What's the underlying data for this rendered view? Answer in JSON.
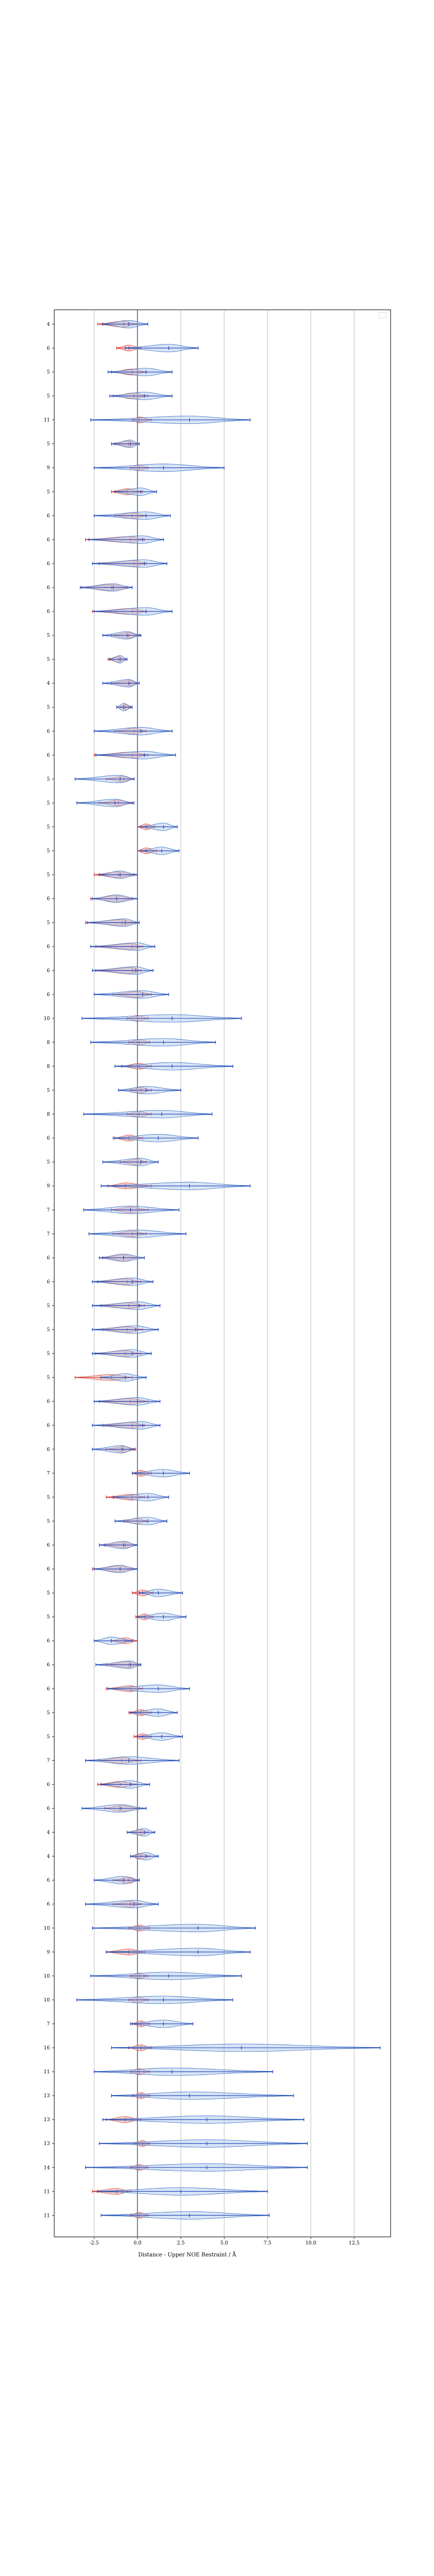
{
  "chart_data": {
    "type": "violin",
    "xlabel": "Distance - Upper NOE Restraint / Å",
    "xlim": [
      -4.8,
      14.6
    ],
    "x_ticks": [
      -2.5,
      0.0,
      2.5,
      5.0,
      7.5,
      10.0,
      12.5
    ],
    "x_tick_labels": [
      "-2.5",
      "0.0",
      "2.5",
      "5.0",
      "7.5",
      "10.0",
      "12.5"
    ],
    "grid": "vertical",
    "legend": "top-right",
    "colors": {
      "violin_blue_fill": "#a9c6ea",
      "violin_blue_edge": "#3a72c4",
      "violin_red_fill": "#ec9e96",
      "violin_red_edge": "#d9463a",
      "line_blue": "#1f3fb5",
      "line_red": "#d92b2b",
      "zero_line": "#1f5fa8",
      "grid": "#b0b0b0"
    },
    "series": [
      {
        "name": "blue",
        "note": ""
      },
      {
        "name": "red",
        "note": ""
      }
    ],
    "rows": [
      {
        "label": "4",
        "blue": [
          -2.0,
          -0.5,
          0.6
        ],
        "red": [
          -2.3,
          -0.8,
          0.0
        ]
      },
      {
        "label": "6",
        "blue": [
          -0.7,
          1.8,
          3.5
        ],
        "red": [
          -1.2,
          -0.5,
          0.2
        ]
      },
      {
        "label": "5",
        "blue": [
          -1.7,
          0.5,
          2.0
        ],
        "red": [
          -1.5,
          -0.3,
          0.5
        ]
      },
      {
        "label": "5",
        "blue": [
          -1.6,
          0.4,
          2.0
        ],
        "red": [
          -1.4,
          -0.2,
          0.6
        ]
      },
      {
        "label": "11",
        "blue": [
          -2.7,
          3.0,
          6.5
        ],
        "red": [
          -0.3,
          0.1,
          0.8
        ]
      },
      {
        "label": "5",
        "blue": [
          -1.5,
          -0.4,
          0.1
        ],
        "red": [
          -1.3,
          -0.5,
          0.0
        ]
      },
      {
        "label": "9",
        "blue": [
          -2.5,
          1.5,
          5.0
        ],
        "red": [
          -0.4,
          0.1,
          0.6
        ]
      },
      {
        "label": "5",
        "blue": [
          -1.3,
          0.2,
          1.1
        ],
        "red": [
          -1.5,
          -0.6,
          0.3
        ]
      },
      {
        "label": "6",
        "blue": [
          -2.5,
          0.5,
          1.9
        ],
        "red": [
          -1.3,
          -0.3,
          0.5
        ]
      },
      {
        "label": "6",
        "blue": [
          -2.8,
          0.3,
          1.5
        ],
        "red": [
          -3.0,
          -0.4,
          0.4
        ]
      },
      {
        "label": "6",
        "blue": [
          -2.6,
          0.4,
          1.7
        ],
        "red": [
          -2.2,
          -0.2,
          0.5
        ]
      },
      {
        "label": "6",
        "blue": [
          -3.3,
          -1.4,
          -0.3
        ],
        "red": [
          -3.2,
          -1.5,
          -0.6
        ]
      },
      {
        "label": "6",
        "blue": [
          -2.5,
          0.5,
          2.0
        ],
        "red": [
          -2.6,
          -0.3,
          0.5
        ]
      },
      {
        "label": "5",
        "blue": [
          -2.0,
          -0.6,
          0.2
        ],
        "red": [
          -1.5,
          -0.5,
          0.1
        ]
      },
      {
        "label": "5",
        "blue": [
          -1.6,
          -1.0,
          -0.6
        ],
        "red": [
          -1.7,
          -1.1,
          -0.7
        ]
      },
      {
        "label": "4",
        "blue": [
          -2.0,
          -0.5,
          0.1
        ],
        "red": [
          -1.5,
          -0.4,
          0.0
        ]
      },
      {
        "label": "5",
        "blue": [
          -1.2,
          -0.8,
          -0.3
        ],
        "red": [
          -1.0,
          -0.7,
          -0.4
        ]
      },
      {
        "label": "6",
        "blue": [
          -2.5,
          0.2,
          2.0
        ],
        "red": [
          -1.3,
          -0.2,
          0.5
        ]
      },
      {
        "label": "6",
        "blue": [
          -2.4,
          0.4,
          2.2
        ],
        "red": [
          -2.5,
          -0.3,
          0.6
        ]
      },
      {
        "label": "5",
        "blue": [
          -3.6,
          -1.0,
          -0.2
        ],
        "red": [
          -1.8,
          -0.8,
          -0.2
        ]
      },
      {
        "label": "5",
        "blue": [
          -3.5,
          -1.3,
          -0.2
        ],
        "red": [
          -2.2,
          -1.1,
          -0.3
        ]
      },
      {
        "label": "5",
        "blue": [
          0.2,
          1.5,
          2.3
        ],
        "red": [
          0.0,
          0.5,
          1.0
        ]
      },
      {
        "label": "5",
        "blue": [
          0.2,
          1.4,
          2.4
        ],
        "red": [
          0.0,
          0.5,
          1.1
        ]
      },
      {
        "label": "5",
        "blue": [
          -2.2,
          -1.0,
          0.0
        ],
        "red": [
          -2.5,
          -1.1,
          -0.2
        ]
      },
      {
        "label": "6",
        "blue": [
          -2.6,
          -1.2,
          0.0
        ],
        "red": [
          -2.7,
          -1.2,
          -0.3
        ]
      },
      {
        "label": "5",
        "blue": [
          -2.9,
          -0.7,
          0.1
        ],
        "red": [
          -3.0,
          -0.9,
          -0.1
        ]
      },
      {
        "label": "6",
        "blue": [
          -2.7,
          0.0,
          1.0
        ],
        "red": [
          -2.4,
          -0.3,
          0.3
        ]
      },
      {
        "label": "6",
        "blue": [
          -2.6,
          -0.1,
          0.9
        ],
        "red": [
          -2.4,
          -0.3,
          0.2
        ]
      },
      {
        "label": "6",
        "blue": [
          -2.5,
          0.3,
          1.8
        ],
        "red": [
          -1.4,
          0.0,
          0.8
        ]
      },
      {
        "label": "10",
        "blue": [
          -3.2,
          2.0,
          6.0
        ],
        "red": [
          -0.6,
          0.0,
          0.6
        ]
      },
      {
        "label": "8",
        "blue": [
          -2.7,
          1.5,
          4.5
        ],
        "red": [
          -0.5,
          0.1,
          0.7
        ]
      },
      {
        "label": "8",
        "blue": [
          -1.3,
          2.0,
          5.5
        ],
        "red": [
          -0.9,
          0.1,
          0.8
        ]
      },
      {
        "label": "5",
        "blue": [
          -1.1,
          0.5,
          2.5
        ],
        "red": [
          -0.4,
          0.2,
          0.8
        ]
      },
      {
        "label": "8",
        "blue": [
          -3.1,
          1.4,
          4.3
        ],
        "red": [
          -0.6,
          0.1,
          0.8
        ]
      },
      {
        "label": "6",
        "blue": [
          -1.4,
          1.2,
          3.5
        ],
        "red": [
          -1.3,
          -0.5,
          0.3
        ]
      },
      {
        "label": "5",
        "blue": [
          -2.0,
          0.2,
          1.2
        ],
        "red": [
          -1.0,
          0.0,
          0.5
        ]
      },
      {
        "label": "9",
        "blue": [
          -2.1,
          3.0,
          6.5
        ],
        "red": [
          -1.7,
          -0.7,
          0.8
        ]
      },
      {
        "label": "7",
        "blue": [
          -3.1,
          -0.4,
          2.4
        ],
        "red": [
          -1.5,
          -0.4,
          0.6
        ]
      },
      {
        "label": "7",
        "blue": [
          -2.8,
          0.0,
          2.8
        ],
        "red": [
          -1.4,
          -0.3,
          0.5
        ]
      },
      {
        "label": "6",
        "blue": [
          -2.2,
          -0.8,
          0.4
        ],
        "red": [
          -2.0,
          -0.8,
          0.0
        ]
      },
      {
        "label": "6",
        "blue": [
          -2.6,
          -0.3,
          0.9
        ],
        "red": [
          -2.3,
          -0.6,
          0.2
        ]
      },
      {
        "label": "5",
        "blue": [
          -2.6,
          0.1,
          1.3
        ],
        "red": [
          -2.1,
          -0.5,
          0.4
        ]
      },
      {
        "label": "5",
        "blue": [
          -2.6,
          -0.1,
          1.2
        ],
        "red": [
          -2.0,
          -0.6,
          0.3
        ]
      },
      {
        "label": "5",
        "blue": [
          -2.6,
          -0.3,
          0.8
        ],
        "red": [
          -2.4,
          -0.7,
          0.2
        ]
      },
      {
        "label": "5",
        "blue": [
          -2.1,
          -0.7,
          0.5
        ],
        "red": [
          -3.6,
          -1.5,
          -0.3
        ]
      },
      {
        "label": "6",
        "blue": [
          -2.5,
          0.0,
          1.3
        ],
        "red": [
          -2.2,
          -0.4,
          0.6
        ]
      },
      {
        "label": "6",
        "blue": [
          -2.6,
          0.3,
          1.3
        ],
        "red": [
          -2.0,
          -0.3,
          0.4
        ]
      },
      {
        "label": "6",
        "blue": [
          -2.6,
          -0.9,
          -0.2
        ],
        "red": [
          -1.8,
          -0.8,
          -0.1
        ]
      },
      {
        "label": "7",
        "blue": [
          -0.3,
          1.5,
          3.0
        ],
        "red": [
          -0.3,
          0.2,
          0.8
        ]
      },
      {
        "label": "5",
        "blue": [
          -1.4,
          0.6,
          1.8
        ],
        "red": [
          -1.8,
          -0.3,
          0.4
        ]
      },
      {
        "label": "5",
        "blue": [
          -1.3,
          0.6,
          1.7
        ],
        "red": [
          -0.8,
          0.0,
          0.5
        ]
      },
      {
        "label": "6",
        "blue": [
          -2.2,
          -0.8,
          0.0
        ],
        "red": [
          -1.9,
          -0.7,
          0.0
        ]
      },
      {
        "label": "6",
        "blue": [
          -2.5,
          -1.0,
          0.0
        ],
        "red": [
          -2.6,
          -1.0,
          -0.3
        ]
      },
      {
        "label": "5",
        "blue": [
          0.1,
          1.2,
          2.6
        ],
        "red": [
          -0.3,
          0.3,
          0.9
        ]
      },
      {
        "label": "5",
        "blue": [
          0.0,
          1.5,
          2.8
        ],
        "red": [
          -0.1,
          0.4,
          0.9
        ]
      },
      {
        "label": "6",
        "blue": [
          -2.5,
          -1.5,
          -0.3
        ],
        "red": [
          -1.5,
          -0.7,
          0.0
        ]
      },
      {
        "label": "6",
        "blue": [
          -2.4,
          -0.4,
          0.2
        ],
        "red": [
          -1.8,
          -0.5,
          0.1
        ]
      },
      {
        "label": "6",
        "blue": [
          -1.7,
          1.2,
          3.0
        ],
        "red": [
          -1.8,
          -0.4,
          0.3
        ]
      },
      {
        "label": "5",
        "blue": [
          -0.4,
          1.2,
          2.3
        ],
        "red": [
          -0.5,
          0.2,
          0.8
        ]
      },
      {
        "label": "5",
        "blue": [
          0.0,
          1.4,
          2.6
        ],
        "red": [
          -0.2,
          0.3,
          0.8
        ]
      },
      {
        "label": "7",
        "blue": [
          -3.0,
          -0.5,
          2.4
        ],
        "red": [
          -2.2,
          -0.9,
          0.2
        ]
      },
      {
        "label": "6",
        "blue": [
          -2.1,
          -0.4,
          0.7
        ],
        "red": [
          -2.3,
          -1.0,
          0.0
        ]
      },
      {
        "label": "6",
        "blue": [
          -3.2,
          -1.0,
          0.5
        ],
        "red": [
          -1.9,
          -0.9,
          0.1
        ]
      },
      {
        "label": "4",
        "blue": [
          -0.6,
          0.4,
          1.0
        ],
        "red": [
          -0.3,
          0.2,
          0.6
        ]
      },
      {
        "label": "4",
        "blue": [
          -0.4,
          0.5,
          1.2
        ],
        "red": [
          -0.4,
          0.2,
          0.7
        ]
      },
      {
        "label": "6",
        "blue": [
          -2.5,
          -0.8,
          0.1
        ],
        "red": [
          -1.4,
          -0.5,
          0.1
        ]
      },
      {
        "label": "6",
        "blue": [
          -3.0,
          -0.2,
          1.2
        ],
        "red": [
          -1.4,
          -0.4,
          0.2
        ]
      },
      {
        "label": "10",
        "blue": [
          -2.6,
          3.5,
          6.8
        ],
        "red": [
          -0.5,
          0.1,
          0.7
        ]
      },
      {
        "label": "9",
        "blue": [
          -1.8,
          3.5,
          6.5
        ],
        "red": [
          -1.8,
          -0.5,
          0.4
        ]
      },
      {
        "label": "10",
        "blue": [
          -2.7,
          1.8,
          6.0
        ],
        "red": [
          -0.4,
          0.1,
          0.6
        ]
      },
      {
        "label": "10",
        "blue": [
          -3.5,
          1.5,
          5.5
        ],
        "red": [
          -0.5,
          0.0,
          0.6
        ]
      },
      {
        "label": "7",
        "blue": [
          -0.4,
          1.5,
          3.2
        ],
        "red": [
          -0.3,
          0.2,
          0.7
        ]
      },
      {
        "label": "16",
        "blue": [
          -1.5,
          6.0,
          14.0
        ],
        "red": [
          -0.5,
          0.2,
          0.8
        ]
      },
      {
        "label": "11",
        "blue": [
          -2.5,
          2.0,
          7.8
        ],
        "red": [
          -0.4,
          0.1,
          0.7
        ]
      },
      {
        "label": "13",
        "blue": [
          -1.5,
          3.0,
          9.0
        ],
        "red": [
          -0.3,
          0.2,
          0.7
        ]
      },
      {
        "label": "13",
        "blue": [
          -2.0,
          4.0,
          9.6
        ],
        "red": [
          -1.8,
          -0.7,
          0.2
        ]
      },
      {
        "label": "13",
        "blue": [
          -2.2,
          4.0,
          9.8
        ],
        "red": [
          -0.2,
          0.3,
          0.7
        ]
      },
      {
        "label": "14",
        "blue": [
          -3.0,
          4.0,
          9.8
        ],
        "red": [
          -0.4,
          0.1,
          0.6
        ]
      },
      {
        "label": "11",
        "blue": [
          -2.3,
          2.5,
          7.5
        ],
        "red": [
          -2.6,
          -1.2,
          -0.4
        ]
      },
      {
        "label": "11",
        "blue": [
          -2.1,
          3.0,
          7.6
        ],
        "red": [
          -0.4,
          0.1,
          0.6
        ]
      }
    ]
  }
}
